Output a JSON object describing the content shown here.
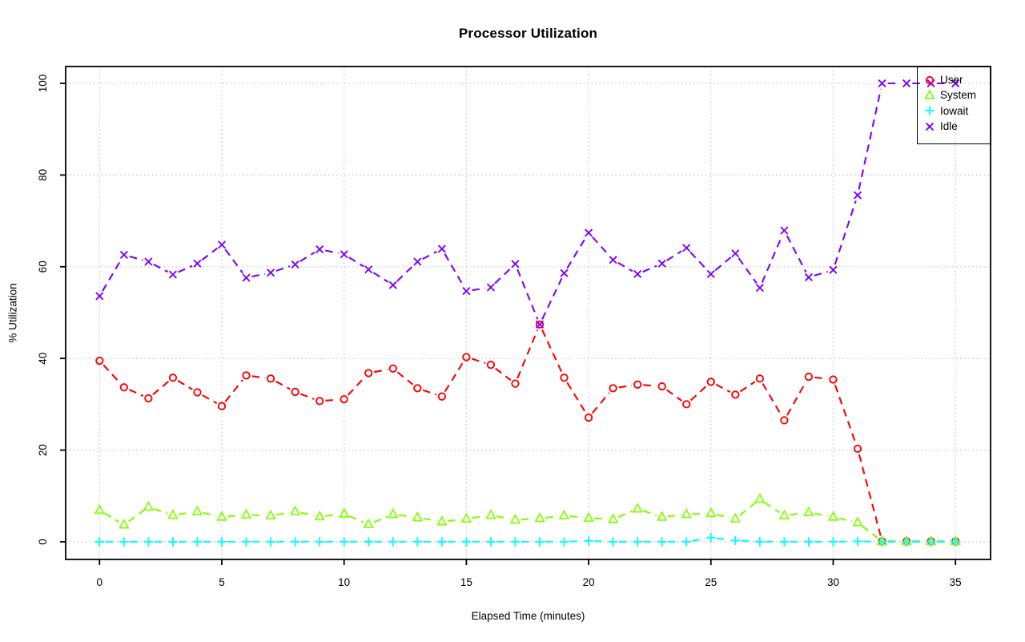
{
  "chart_data": {
    "type": "line",
    "title": "Processor Utilization",
    "xlabel": "Elapsed Time (minutes)",
    "ylabel": "% Utilization",
    "xlim": [
      0,
      35
    ],
    "ylim": [
      0,
      100
    ],
    "xticks": [
      0,
      5,
      10,
      15,
      20,
      25,
      30,
      35
    ],
    "yticks": [
      0,
      20,
      40,
      60,
      80,
      100
    ],
    "grid": "dotted-lightgray",
    "line_style": "dashed-with-open-markers",
    "legend_position": "topright",
    "x": [
      0,
      1,
      2,
      3,
      4,
      5,
      6,
      7,
      8,
      9,
      10,
      11,
      12,
      13,
      14,
      15,
      16,
      17,
      18,
      19,
      20,
      21,
      22,
      23,
      24,
      25,
      26,
      27,
      28,
      29,
      30,
      31,
      32,
      33,
      34,
      35
    ],
    "series": [
      {
        "name": "User",
        "color": "#FF0000",
        "marker": "circle",
        "values": [
          39.5,
          33.7,
          31.3,
          35.8,
          32.6,
          29.6,
          36.3,
          35.6,
          32.7,
          30.7,
          31.1,
          36.8,
          37.8,
          33.5,
          31.7,
          40.3,
          38.6,
          34.5,
          47.4,
          35.8,
          27.1,
          33.5,
          34.3,
          33.9,
          30.0,
          34.9,
          32.1,
          35.6,
          26.5,
          36.0,
          35.4,
          20.3,
          0.1,
          0.1,
          0.1,
          0.1
        ]
      },
      {
        "name": "System",
        "color": "#80FF00",
        "marker": "triangle",
        "values": [
          6.9,
          3.7,
          7.6,
          5.8,
          6.6,
          5.4,
          5.9,
          5.7,
          6.6,
          5.5,
          6.1,
          3.8,
          6.0,
          5.3,
          4.4,
          5.0,
          5.8,
          4.8,
          5.1,
          5.7,
          5.2,
          4.9,
          7.2,
          5.4,
          6.0,
          6.2,
          5.0,
          9.3,
          5.7,
          6.4,
          5.4,
          4.2,
          0.1,
          0.1,
          0.1,
          0.1
        ]
      },
      {
        "name": "Iowait",
        "color": "#00FFFF",
        "marker": "plus",
        "values": [
          0,
          0,
          0,
          0,
          0,
          0,
          0,
          0,
          0,
          0,
          0,
          0,
          0,
          0,
          0,
          0,
          0,
          0,
          0,
          0,
          0.2,
          0,
          0,
          0,
          0,
          0.9,
          0.3,
          0,
          0,
          0,
          0,
          0.1,
          0,
          0,
          0,
          0
        ]
      },
      {
        "name": "Idle",
        "color": "#8000FF",
        "marker": "x",
        "values": [
          53.6,
          62.6,
          61.1,
          58.3,
          60.7,
          64.8,
          57.6,
          58.7,
          60.5,
          63.8,
          62.7,
          59.4,
          56.0,
          61.1,
          63.9,
          54.7,
          55.5,
          60.6,
          47.4,
          58.6,
          67.4,
          61.5,
          58.4,
          60.7,
          64.1,
          58.4,
          62.9,
          55.4,
          67.9,
          57.7,
          59.3,
          75.6,
          100,
          100,
          100,
          100
        ]
      }
    ]
  }
}
